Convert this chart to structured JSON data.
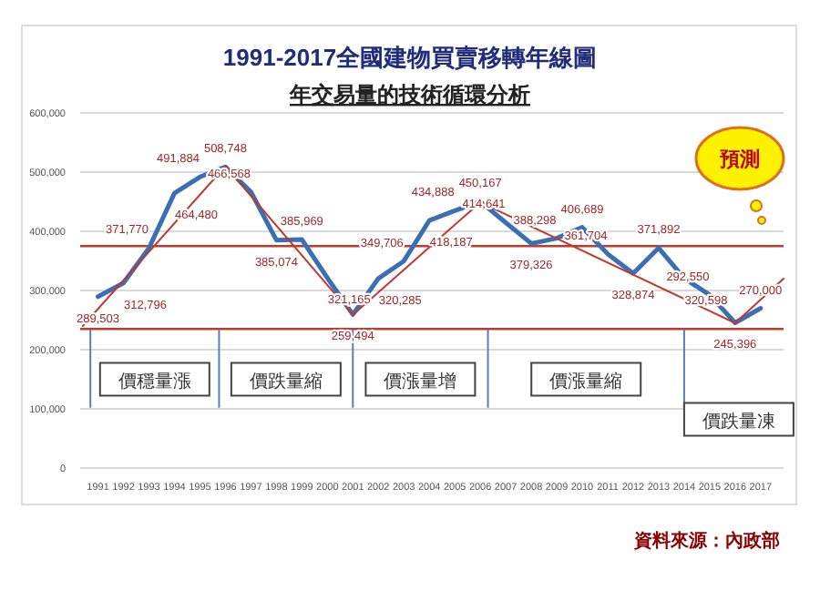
{
  "chart_data": {
    "type": "line",
    "title": "1991-2017全國建物買賣移轉年線圖",
    "subtitle": "年交易量的技術循環分析",
    "x": [
      1991,
      1992,
      1993,
      1994,
      1995,
      1996,
      1997,
      1998,
      1999,
      2000,
      2001,
      2002,
      2003,
      2004,
      2005,
      2006,
      2007,
      2008,
      2009,
      2010,
      2011,
      2012,
      2013,
      2014,
      2015,
      2016,
      2017
    ],
    "series": [
      {
        "color": "#3a6fb5",
        "values": [
          289503,
          312796,
          371770,
          464480,
          491884,
          508748,
          466568,
          385074,
          385969,
          321165,
          259494,
          320285,
          349706,
          418187,
          434888,
          450167,
          414641,
          379326,
          388298,
          406689,
          361704,
          328874,
          371892,
          320598,
          292550,
          245396,
          270000
        ],
        "value_labels": [
          "289,503",
          "312,796",
          "371,770",
          "464,480",
          "491,884",
          "508,748",
          "466,568",
          "385,074",
          "385,969",
          "321,165",
          "259,494",
          "320,285",
          "349,706",
          "418,187",
          "434,888",
          "450,167",
          "414,641",
          "379,326",
          "388,298",
          "406,689",
          "361,704",
          "328,874",
          "371,892",
          "320,598",
          "292,550",
          "245,396",
          "270,000"
        ]
      },
      {
        "type": "line",
        "color": "#c0392b",
        "x": [
          1990.4,
          1996,
          2001,
          2006,
          2016,
          2017.9
        ],
        "values": [
          240000,
          510000,
          259000,
          449000,
          245000,
          320000
        ]
      }
    ],
    "xlim": [
      1990.3,
      2017.9
    ],
    "xticks": [
      1991,
      1992,
      1993,
      1994,
      1995,
      1996,
      1997,
      1998,
      1999,
      2000,
      2001,
      2002,
      2003,
      2004,
      2005,
      2006,
      2007,
      2008,
      2009,
      2010,
      2011,
      2012,
      2013,
      2014,
      2015,
      2016,
      2017
    ],
    "ylim": [
      0,
      600000
    ],
    "yticks": [
      {
        "value": 0,
        "label": "0"
      },
      {
        "value": 100000,
        "label": "100,000"
      },
      {
        "value": 200000,
        "label": "200,000"
      },
      {
        "value": 300000,
        "label": "300,000"
      },
      {
        "value": 400000,
        "label": "400,000"
      },
      {
        "value": 500000,
        "label": "500,000"
      },
      {
        "value": 600000,
        "label": "600,000"
      }
    ],
    "grid": "y",
    "ref_lines": [
      {
        "axis": "y",
        "value": 375000,
        "color": "#c0392b"
      },
      {
        "axis": "y",
        "value": 235000,
        "color": "#c0392b"
      },
      {
        "axis": "x",
        "value": 1990.7,
        "color": "#5a7fb5"
      },
      {
        "axis": "x",
        "value": 1995.75,
        "color": "#5a7fb5"
      },
      {
        "axis": "x",
        "value": 2001,
        "color": "#5a7fb5"
      },
      {
        "axis": "x",
        "value": 2006.3,
        "color": "#5a7fb5"
      },
      {
        "axis": "x",
        "value": 2014,
        "color": "#5a7fb5"
      }
    ],
    "annotations": [
      "價穩量漲",
      "價跌量縮",
      "價漲量增",
      "價漲量縮",
      "價跌量凍",
      "預測",
      "資料來源：內政部"
    ]
  }
}
